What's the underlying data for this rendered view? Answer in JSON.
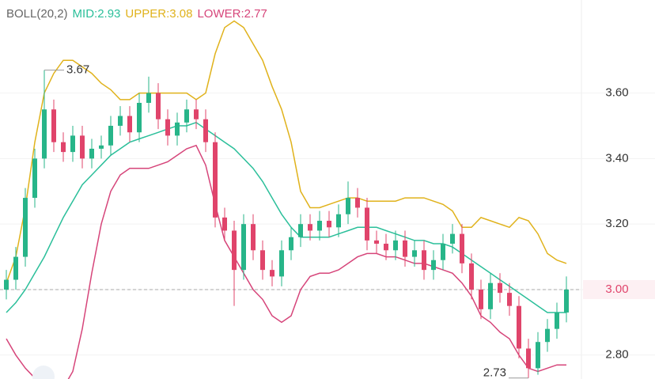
{
  "chart_data": {
    "type": "candlestick",
    "indicator": "BOLL(20,2)",
    "open": [
      3.0,
      3.03,
      3.1,
      3.28,
      3.4,
      3.55,
      3.45,
      3.42,
      3.47,
      3.4,
      3.43,
      3.44,
      3.5,
      3.53,
      3.48,
      3.57,
      3.6,
      3.52,
      3.47,
      3.51,
      3.55,
      3.52,
      3.45,
      3.22,
      3.18,
      3.06,
      3.2,
      3.12,
      3.06,
      3.04,
      3.12,
      3.16,
      3.2,
      3.18,
      3.21,
      3.19,
      3.23,
      3.28,
      3.25,
      3.15,
      3.14,
      3.12,
      3.15,
      3.1,
      3.12,
      3.06,
      3.09,
      3.14,
      3.17,
      3.08,
      3.0,
      2.94,
      3.02,
      2.99,
      2.95,
      2.82,
      2.76,
      2.84,
      2.88,
      2.93
    ],
    "high": [
      3.06,
      3.13,
      3.31,
      3.43,
      3.67,
      3.58,
      3.48,
      3.5,
      3.5,
      3.46,
      3.47,
      3.53,
      3.56,
      3.56,
      3.6,
      3.65,
      3.63,
      3.55,
      3.54,
      3.58,
      3.58,
      3.55,
      3.48,
      3.25,
      3.21,
      3.23,
      3.23,
      3.15,
      3.09,
      3.15,
      3.19,
      3.23,
      3.23,
      3.24,
      3.24,
      3.26,
      3.33,
      3.31,
      3.28,
      3.18,
      3.17,
      3.18,
      3.18,
      3.15,
      3.15,
      3.12,
      3.17,
      3.2,
      3.2,
      3.11,
      3.03,
      3.05,
      3.05,
      3.02,
      2.98,
      2.85,
      2.87,
      2.91,
      2.96,
      3.04
    ],
    "low": [
      2.97,
      3.0,
      3.07,
      3.25,
      3.37,
      3.42,
      3.39,
      3.39,
      3.37,
      3.37,
      3.4,
      3.41,
      3.47,
      3.45,
      3.45,
      3.54,
      3.49,
      3.44,
      3.44,
      3.48,
      3.49,
      3.42,
      3.19,
      3.15,
      2.95,
      3.03,
      3.09,
      3.03,
      3.01,
      3.01,
      3.09,
      3.13,
      3.15,
      3.15,
      3.16,
      3.16,
      3.2,
      3.22,
      3.12,
      3.11,
      3.09,
      3.09,
      3.07,
      3.07,
      3.03,
      3.03,
      3.06,
      3.11,
      3.05,
      2.97,
      2.91,
      2.91,
      2.96,
      2.92,
      2.79,
      2.73,
      2.74,
      2.81,
      2.85,
      2.9
    ],
    "close": [
      3.03,
      3.1,
      3.28,
      3.4,
      3.55,
      3.45,
      3.42,
      3.47,
      3.4,
      3.43,
      3.44,
      3.5,
      3.53,
      3.48,
      3.57,
      3.6,
      3.52,
      3.47,
      3.51,
      3.55,
      3.52,
      3.45,
      3.22,
      3.18,
      3.06,
      3.2,
      3.12,
      3.06,
      3.04,
      3.12,
      3.16,
      3.2,
      3.18,
      3.21,
      3.19,
      3.23,
      3.28,
      3.25,
      3.15,
      3.14,
      3.12,
      3.15,
      3.1,
      3.12,
      3.06,
      3.09,
      3.14,
      3.17,
      3.08,
      3.0,
      2.94,
      3.02,
      2.99,
      2.95,
      2.82,
      2.76,
      2.84,
      2.88,
      2.93,
      3.0
    ],
    "up_color": "#27b589",
    "down_color": "#e0446b",
    "series": [
      {
        "name": "MID:2.93",
        "color": "#2bbf9a",
        "values": [
          2.93,
          2.96,
          3.0,
          3.05,
          3.1,
          3.16,
          3.22,
          3.27,
          3.32,
          3.35,
          3.38,
          3.41,
          3.43,
          3.45,
          3.46,
          3.47,
          3.48,
          3.49,
          3.5,
          3.5,
          3.51,
          3.49,
          3.47,
          3.45,
          3.43,
          3.4,
          3.37,
          3.33,
          3.28,
          3.23,
          3.19,
          3.16,
          3.16,
          3.16,
          3.16,
          3.17,
          3.18,
          3.19,
          3.19,
          3.19,
          3.18,
          3.17,
          3.16,
          3.15,
          3.15,
          3.14,
          3.14,
          3.13,
          3.11,
          3.09,
          3.07,
          3.05,
          3.03,
          3.01,
          2.99,
          2.97,
          2.95,
          2.93,
          2.93,
          2.93
        ]
      },
      {
        "name": "UPPER:3.08",
        "color": "#e0b21b",
        "values": [
          3.02,
          3.1,
          3.25,
          3.45,
          3.6,
          3.66,
          3.7,
          3.7,
          3.68,
          3.66,
          3.63,
          3.61,
          3.58,
          3.58,
          3.6,
          3.6,
          3.6,
          3.6,
          3.6,
          3.6,
          3.58,
          3.6,
          3.72,
          3.8,
          3.82,
          3.8,
          3.75,
          3.7,
          3.62,
          3.55,
          3.45,
          3.3,
          3.25,
          3.25,
          3.26,
          3.27,
          3.28,
          3.28,
          3.27,
          3.27,
          3.27,
          3.27,
          3.28,
          3.28,
          3.28,
          3.27,
          3.26,
          3.24,
          3.19,
          3.19,
          3.22,
          3.21,
          3.2,
          3.19,
          3.22,
          3.21,
          3.17,
          3.11,
          3.09,
          3.08
        ]
      },
      {
        "name": "LOWER:2.77",
        "color": "#d6457a",
        "values": [
          2.85,
          2.8,
          2.76,
          2.73,
          2.7,
          2.69,
          2.7,
          2.75,
          2.88,
          3.05,
          3.2,
          3.3,
          3.35,
          3.37,
          3.37,
          3.37,
          3.38,
          3.39,
          3.41,
          3.43,
          3.44,
          3.38,
          3.26,
          3.15,
          3.1,
          3.05,
          3.0,
          2.97,
          2.92,
          2.9,
          2.92,
          3.0,
          3.04,
          3.05,
          3.05,
          3.06,
          3.08,
          3.1,
          3.11,
          3.11,
          3.1,
          3.1,
          3.09,
          3.08,
          3.08,
          3.07,
          3.06,
          3.05,
          3.02,
          2.98,
          2.92,
          2.9,
          2.87,
          2.85,
          2.8,
          2.76,
          2.75,
          2.76,
          2.77,
          2.77
        ]
      }
    ],
    "max_label": "3.67",
    "min_label": "2.73",
    "ylim": [
      2.727,
      3.884
    ],
    "yticks": [
      {
        "value": 2.8,
        "label": "2.80"
      },
      {
        "value": 3.0,
        "label": "3.00"
      },
      {
        "value": 3.2,
        "label": "3.20"
      },
      {
        "value": 3.4,
        "label": "3.40"
      },
      {
        "value": 3.6,
        "label": "3.60"
      }
    ],
    "grid": true
  }
}
